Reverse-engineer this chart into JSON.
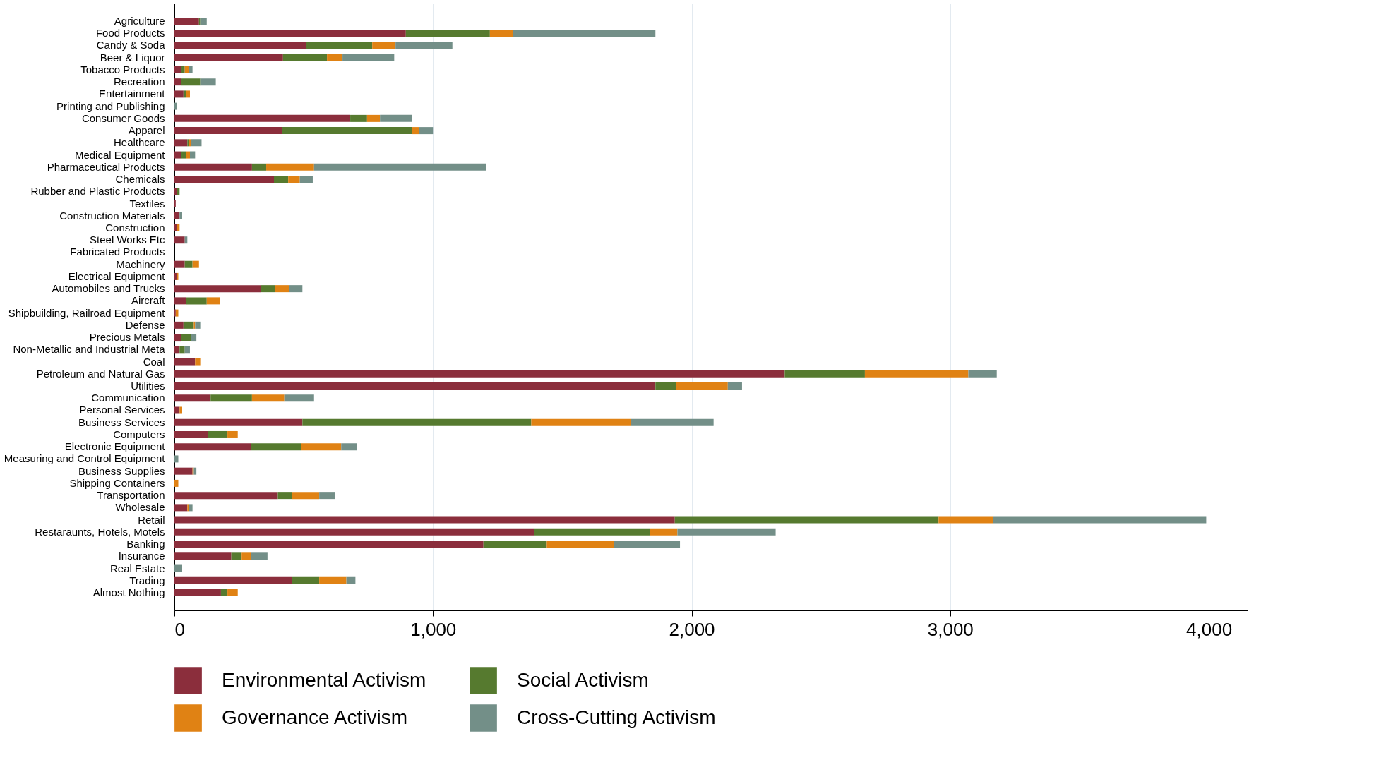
{
  "chart_data": {
    "type": "bar",
    "orientation": "horizontal",
    "stacked": true,
    "grid": "x",
    "legend": "bottom",
    "categories": [
      "Agriculture",
      "Food Products",
      "Candy & Soda",
      "Beer & Liquor",
      "Tobacco Products",
      "Recreation",
      "Entertainment",
      "Printing and Publishing",
      "Consumer Goods",
      "Apparel",
      "Healthcare",
      "Medical Equipment",
      "Pharmaceutical Products",
      "Chemicals",
      "Rubber and Plastic Products",
      "Textiles",
      "Construction Materials",
      "Construction",
      "Steel Works Etc",
      "Fabricated Products",
      "Machinery",
      "Electrical Equipment",
      "Automobiles and Trucks",
      "Aircraft",
      "Shipbuilding, Railroad Equipment",
      "Defense",
      "Precious Metals",
      "Non-Metallic and Industrial Meta",
      "Coal",
      "Petroleum and Natural Gas",
      "Utilities",
      "Communication",
      "Personal Services",
      "Business Services",
      "Computers",
      "Electronic Equipment",
      "Measuring and Control Equipment",
      "Business Supplies",
      "Shipping Containers",
      "Transportation",
      "Wholesale",
      "Retail",
      "Restaraunts, Hotels, Motels",
      "Banking",
      "Insurance",
      "Real Estate",
      "Trading",
      "Almost Nothing"
    ],
    "series": [
      {
        "name": "Environmental Activism",
        "color": "#8b2e3c",
        "values": [
          95,
          895,
          510,
          420,
          25,
          25,
          35,
          0,
          680,
          415,
          50,
          25,
          300,
          385,
          10,
          5,
          20,
          10,
          40,
          0,
          40,
          10,
          335,
          45,
          5,
          35,
          25,
          20,
          80,
          2360,
          1860,
          140,
          20,
          495,
          130,
          295,
          0,
          70,
          0,
          400,
          50,
          1935,
          1390,
          1195,
          220,
          0,
          455,
          180
        ]
      },
      {
        "name": "Social Activism",
        "color": "#567a2f",
        "values": [
          5,
          325,
          255,
          170,
          15,
          75,
          10,
          0,
          65,
          505,
          5,
          20,
          55,
          55,
          10,
          0,
          0,
          0,
          0,
          0,
          30,
          0,
          55,
          80,
          0,
          40,
          40,
          20,
          0,
          310,
          80,
          160,
          0,
          885,
          75,
          195,
          0,
          0,
          0,
          55,
          0,
          1020,
          450,
          245,
          40,
          0,
          105,
          25
        ]
      },
      {
        "name": "Governance Activism",
        "color": "#e08214",
        "values": [
          0,
          90,
          90,
          60,
          15,
          0,
          15,
          0,
          50,
          25,
          10,
          15,
          185,
          45,
          0,
          0,
          0,
          10,
          0,
          0,
          25,
          5,
          55,
          50,
          10,
          5,
          0,
          0,
          20,
          400,
          200,
          125,
          10,
          385,
          40,
          155,
          0,
          5,
          15,
          105,
          5,
          210,
          105,
          260,
          35,
          0,
          105,
          40
        ]
      },
      {
        "name": "Cross-Cutting Activism",
        "color": "#738f88",
        "values": [
          25,
          550,
          220,
          200,
          15,
          60,
          0,
          10,
          125,
          55,
          40,
          20,
          665,
          50,
          0,
          0,
          10,
          0,
          10,
          0,
          0,
          0,
          50,
          0,
          0,
          20,
          20,
          20,
          0,
          110,
          55,
          115,
          0,
          320,
          0,
          60,
          15,
          10,
          0,
          60,
          15,
          825,
          380,
          255,
          65,
          30,
          35,
          0
        ]
      }
    ],
    "xlim": [
      0,
      4150
    ],
    "xticks": [
      {
        "value": 0,
        "label": "0"
      },
      {
        "value": 1000,
        "label": "1,000"
      },
      {
        "value": 2000,
        "label": "2,000"
      },
      {
        "value": 3000,
        "label": "3,000"
      },
      {
        "value": 4000,
        "label": "4,000"
      }
    ]
  }
}
